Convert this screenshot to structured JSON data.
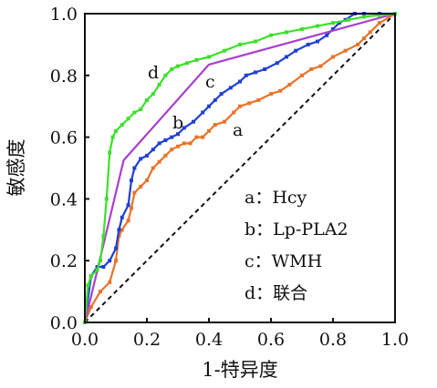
{
  "chart_data": {
    "type": "line",
    "xlabel": "1-特异度",
    "ylabel": "敏感度",
    "xlim": [
      0,
      1
    ],
    "ylim": [
      0,
      1
    ],
    "xticks": [
      "0.0",
      "0.2",
      "0.4",
      "0.6",
      "0.8",
      "1.0"
    ],
    "yticks": [
      "0.0",
      "0.2",
      "0.4",
      "0.6",
      "0.8",
      "1.0"
    ],
    "grid": false,
    "legend_position": "bottom-right",
    "legend": [
      "a：Hcy",
      "b：Lp-PLA2",
      "c：WMH",
      "d：联合"
    ],
    "reference_line": {
      "style": "dashed",
      "color": "#111111",
      "x": [
        0,
        1
      ],
      "y": [
        0,
        1
      ]
    },
    "series": [
      {
        "label": "a",
        "color": "#e8732a",
        "marker": "square",
        "x": [
          0,
          0.02,
          0.05,
          0.08,
          0.1,
          0.11,
          0.12,
          0.14,
          0.15,
          0.16,
          0.18,
          0.2,
          0.22,
          0.24,
          0.26,
          0.28,
          0.3,
          0.32,
          0.34,
          0.36,
          0.38,
          0.4,
          0.42,
          0.45,
          0.48,
          0.5,
          0.53,
          0.56,
          0.6,
          0.63,
          0.66,
          0.7,
          0.73,
          0.76,
          0.8,
          0.84,
          0.88,
          0.9,
          0.92,
          0.95,
          1.0
        ],
        "y": [
          0,
          0.05,
          0.1,
          0.13,
          0.2,
          0.28,
          0.3,
          0.33,
          0.37,
          0.42,
          0.44,
          0.46,
          0.5,
          0.52,
          0.54,
          0.56,
          0.57,
          0.58,
          0.58,
          0.6,
          0.6,
          0.62,
          0.64,
          0.65,
          0.68,
          0.7,
          0.71,
          0.72,
          0.74,
          0.75,
          0.77,
          0.8,
          0.82,
          0.83,
          0.86,
          0.88,
          0.9,
          0.92,
          0.94,
          0.97,
          1.0
        ]
      },
      {
        "label": "b",
        "color": "#1f3fd4",
        "marker": "square",
        "x": [
          0,
          0.02,
          0.04,
          0.06,
          0.08,
          0.1,
          0.11,
          0.12,
          0.14,
          0.15,
          0.16,
          0.18,
          0.2,
          0.22,
          0.24,
          0.26,
          0.28,
          0.3,
          0.32,
          0.35,
          0.38,
          0.4,
          0.42,
          0.44,
          0.47,
          0.5,
          0.52,
          0.55,
          0.58,
          0.62,
          0.65,
          0.68,
          0.72,
          0.75,
          0.78,
          0.8,
          0.82,
          0.84,
          0.87,
          0.9,
          0.95,
          1.0
        ],
        "y": [
          0,
          0.15,
          0.18,
          0.18,
          0.2,
          0.24,
          0.3,
          0.34,
          0.38,
          0.46,
          0.5,
          0.53,
          0.54,
          0.56,
          0.58,
          0.59,
          0.6,
          0.61,
          0.63,
          0.65,
          0.68,
          0.7,
          0.72,
          0.74,
          0.76,
          0.78,
          0.8,
          0.81,
          0.82,
          0.84,
          0.86,
          0.88,
          0.9,
          0.91,
          0.93,
          0.95,
          0.97,
          0.98,
          1.0,
          1.0,
          1.0,
          1.0
        ]
      },
      {
        "label": "c",
        "color": "#a83fd0",
        "marker": "none",
        "x": [
          0,
          0.125,
          0.4,
          1.0
        ],
        "y": [
          0,
          0.525,
          0.835,
          1.0
        ]
      },
      {
        "label": "d",
        "color": "#3ce02a",
        "marker": "square",
        "x": [
          0,
          0.01,
          0.02,
          0.04,
          0.05,
          0.06,
          0.07,
          0.08,
          0.09,
          0.1,
          0.12,
          0.14,
          0.16,
          0.18,
          0.2,
          0.22,
          0.24,
          0.26,
          0.28,
          0.3,
          0.33,
          0.36,
          0.4,
          0.45,
          0.5,
          0.55,
          0.6,
          0.65,
          0.7,
          0.75,
          0.8,
          0.85,
          0.9,
          0.95,
          1.0
        ],
        "y": [
          0,
          0.12,
          0.15,
          0.17,
          0.2,
          0.28,
          0.4,
          0.55,
          0.6,
          0.62,
          0.64,
          0.66,
          0.68,
          0.69,
          0.72,
          0.74,
          0.77,
          0.8,
          0.82,
          0.83,
          0.84,
          0.85,
          0.86,
          0.88,
          0.9,
          0.91,
          0.93,
          0.94,
          0.95,
          0.96,
          0.97,
          0.98,
          0.99,
          0.995,
          1.0
        ]
      }
    ]
  }
}
